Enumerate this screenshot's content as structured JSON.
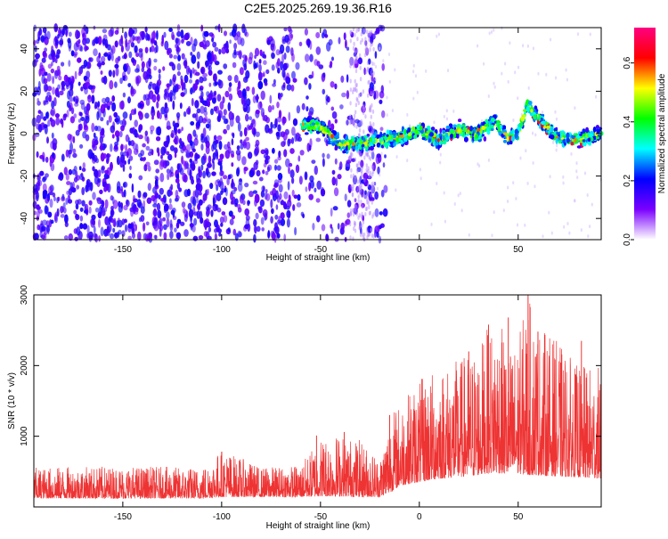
{
  "figure": {
    "title": "C2E5.2025.269.19.36.R16"
  },
  "chart_data": [
    {
      "type": "heatmap",
      "title": "C2E5.2025.269.19.36.R16",
      "xlabel": "Height of straight line (km)",
      "ylabel": "Frequency (Hz)",
      "xlim": [
        -195,
        92
      ],
      "ylim": [
        -50,
        50
      ],
      "xticks": [
        -150,
        -100,
        -50,
        0,
        50
      ],
      "yticks": [
        -40,
        -20,
        0,
        20,
        40
      ],
      "colorbar": {
        "label": "Normalized spectral amplitude",
        "range": [
          0,
          0.72
        ],
        "ticks": [
          0.0,
          0.2,
          0.4,
          0.6
        ],
        "tick_labels": [
          "0.0",
          "0.2",
          "0.4",
          "0.6"
        ],
        "colormap": [
          "#ffffff",
          "#7a00ff",
          "#0000ff",
          "#00ffff",
          "#00ff00",
          "#ffff00",
          "#ff0000",
          "#ff0080"
        ]
      },
      "noise_region_x": [
        -195,
        -25
      ],
      "signal_track": {
        "x": [
          -60,
          -50,
          -40,
          -30,
          -20,
          -10,
          0,
          10,
          20,
          30,
          38,
          45,
          50,
          55,
          60,
          70,
          80,
          92
        ],
        "freq": [
          5,
          3,
          -5,
          -5,
          -3,
          -2,
          2,
          -3,
          2,
          0,
          6,
          -2,
          0,
          14,
          7,
          -2,
          -3,
          0
        ]
      }
    },
    {
      "type": "line",
      "xlabel": "Height of straight line (km)",
      "ylabel": "SNR (10 * v/v)",
      "xlim": [
        -195,
        92
      ],
      "ylim": [
        0,
        3000
      ],
      "xticks": [
        -150,
        -100,
        -50,
        0,
        50
      ],
      "yticks": [
        1000,
        2000,
        3000
      ],
      "color": "#ee3333",
      "envelope": {
        "x": [
          -195,
          -150,
          -110,
          -100,
          -80,
          -60,
          -50,
          -40,
          -30,
          -20,
          -15,
          -10,
          0,
          10,
          20,
          30,
          35,
          40,
          45,
          50,
          55,
          60,
          70,
          80,
          92
        ],
        "min": [
          120,
          120,
          120,
          140,
          140,
          140,
          150,
          150,
          140,
          140,
          200,
          300,
          350,
          400,
          420,
          450,
          480,
          480,
          460,
          470,
          450,
          450,
          430,
          420,
          400
        ],
        "max": [
          560,
          580,
          560,
          820,
          560,
          600,
          1000,
          1050,
          950,
          700,
          1300,
          1500,
          1800,
          2000,
          2100,
          2300,
          2550,
          2700,
          2250,
          2400,
          3000,
          2600,
          2350,
          2000,
          2000
        ]
      },
      "spikes": [
        {
          "x": -100,
          "y": 780
        },
        {
          "x": -52,
          "y": 1010
        },
        {
          "x": -38,
          "y": 1060
        },
        {
          "x": -15,
          "y": 1300
        },
        {
          "x": 25,
          "y": 2200
        },
        {
          "x": 35,
          "y": 2580
        },
        {
          "x": 45,
          "y": 2680
        },
        {
          "x": 55,
          "y": 3000
        },
        {
          "x": 60,
          "y": 2480
        },
        {
          "x": 82,
          "y": 2350
        }
      ]
    }
  ]
}
